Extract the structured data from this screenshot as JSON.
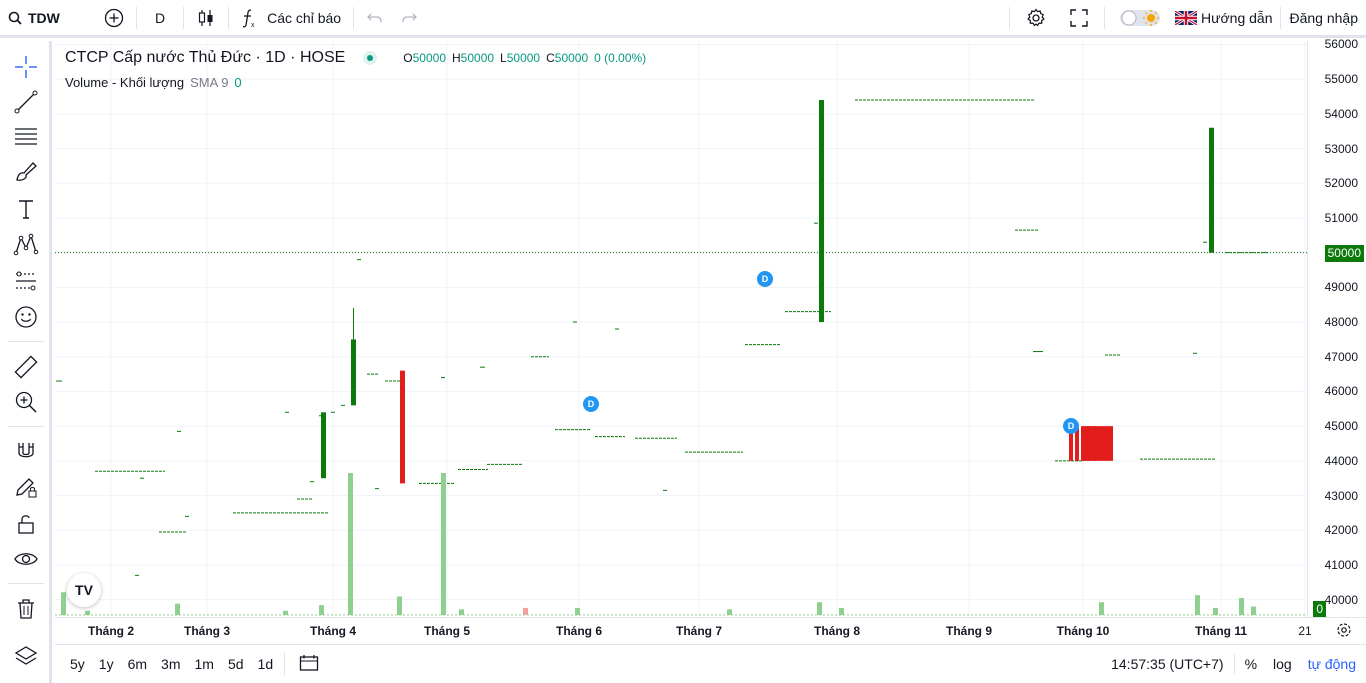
{
  "topbar": {
    "symbol": "TDW",
    "interval": "D",
    "indicators_label": "Các chỉ báo",
    "guide_label": "Hướng dẫn",
    "login_label": "Đăng nhập"
  },
  "legend": {
    "title": "CTCP Cấp nước Thủ Đức · 1D · HOSE",
    "o_key": "O",
    "o_val": "50000",
    "h_key": "H",
    "h_val": "50000",
    "l_key": "L",
    "l_val": "50000",
    "c_key": "C",
    "c_val": "50000",
    "change": "0 (0.00%)",
    "volume_label": "Volume - Khối lượng",
    "sma_label": "SMA 9",
    "sma_val": "0"
  },
  "price_axis": {
    "ticks": [
      "56000",
      "55000",
      "54000",
      "53000",
      "52000",
      "51000",
      "50000",
      "49000",
      "48000",
      "47000",
      "46000",
      "45000",
      "44000",
      "43000",
      "42000",
      "41000",
      "40000"
    ],
    "last_price": "50000",
    "volume_last": "0"
  },
  "time_axis": {
    "ticks": [
      "Tháng 2",
      "Tháng 3",
      "Tháng 4",
      "Tháng 5",
      "Tháng 6",
      "Tháng 7",
      "Tháng 8",
      "Tháng 9",
      "Tháng 10",
      "Tháng 11",
      "21"
    ]
  },
  "bottombar": {
    "ranges": [
      "5y",
      "1y",
      "6m",
      "3m",
      "1m",
      "5d",
      "1d"
    ],
    "clock": "14:57:35 (UTC+7)",
    "percent": "%",
    "log": "log",
    "auto": "tự động"
  },
  "logo_text": "TV",
  "dividend_marker": "D",
  "colors": {
    "up": "#0b7a0b",
    "down": "#e31c1c",
    "accent": "#2962ff",
    "dividend": "#2196f3"
  },
  "chart_data": {
    "type": "bar",
    "ylim": [
      39500,
      56100
    ],
    "y_ticks": [
      40000,
      41000,
      42000,
      43000,
      44000,
      45000,
      46000,
      47000,
      48000,
      49000,
      50000,
      51000,
      52000,
      53000,
      54000,
      55000,
      56000
    ],
    "last_price": 50000,
    "x_tick_labels": [
      "Tháng 2",
      "Tháng 3",
      "Tháng 4",
      "Tháng 5",
      "Tháng 6",
      "Tháng 7",
      "Tháng 8",
      "Tháng 9",
      "Tháng 10",
      "Tháng 11",
      "21"
    ],
    "candles": [
      {
        "o": 46300,
        "h": 46300,
        "l": 46300,
        "c": 46300
      },
      {
        "o": 43700,
        "h": 43700,
        "l": 43700,
        "c": 43700
      },
      {
        "o": 43500,
        "h": 43500,
        "l": 43500,
        "c": 43500
      },
      {
        "o": 40700,
        "h": 40700,
        "l": 40700,
        "c": 40700
      },
      {
        "o": 41950,
        "h": 41950,
        "l": 41950,
        "c": 41950
      },
      {
        "o": 44850,
        "h": 44850,
        "l": 44850,
        "c": 44850
      },
      {
        "o": 42400,
        "h": 42400,
        "l": 42400,
        "c": 42400
      },
      {
        "o": 42500,
        "h": 42500,
        "l": 42500,
        "c": 42500
      },
      {
        "o": 45400,
        "h": 45400,
        "l": 45400,
        "c": 45400
      },
      {
        "o": 42900,
        "h": 42900,
        "l": 42900,
        "c": 42900
      },
      {
        "o": 43400,
        "h": 43400,
        "l": 43400,
        "c": 43400
      },
      {
        "o": 45300,
        "h": 45300,
        "l": 45300,
        "c": 45300
      },
      {
        "o": 43500,
        "h": 45400,
        "l": 43500,
        "c": 45400
      },
      {
        "o": 45400,
        "h": 45400,
        "l": 45400,
        "c": 45400
      },
      {
        "o": 45600,
        "h": 45600,
        "l": 45600,
        "c": 45600
      },
      {
        "o": 45600,
        "h": 48400,
        "l": 45600,
        "c": 47500
      },
      {
        "o": 49800,
        "h": 49800,
        "l": 49800,
        "c": 49800
      },
      {
        "o": 46500,
        "h": 46500,
        "l": 46500,
        "c": 46500
      },
      {
        "o": 43200,
        "h": 43200,
        "l": 43200,
        "c": 43200
      },
      {
        "o": 46300,
        "h": 46300,
        "l": 46300,
        "c": 46300
      },
      {
        "o": 46600,
        "h": 46600,
        "l": 43350,
        "c": 43350
      },
      {
        "o": 43350,
        "h": 43350,
        "l": 43350,
        "c": 43350
      },
      {
        "o": 46400,
        "h": 46400,
        "l": 46400,
        "c": 46400
      },
      {
        "o": 43750,
        "h": 43750,
        "l": 43750,
        "c": 43750
      },
      {
        "o": 46700,
        "h": 46700,
        "l": 46700,
        "c": 46700
      },
      {
        "o": 43900,
        "h": 43900,
        "l": 43900,
        "c": 43900
      },
      {
        "o": 47000,
        "h": 47000,
        "l": 47000,
        "c": 47000
      },
      {
        "o": 44900,
        "h": 44900,
        "l": 44900,
        "c": 44900
      },
      {
        "o": 48000,
        "h": 48000,
        "l": 48000,
        "c": 48000
      },
      {
        "o": 44700,
        "h": 44700,
        "l": 44700,
        "c": 44700
      },
      {
        "o": 47800,
        "h": 47800,
        "l": 47800,
        "c": 47800
      },
      {
        "o": 44650,
        "h": 44650,
        "l": 44650,
        "c": 44650
      },
      {
        "o": 43150,
        "h": 43150,
        "l": 43150,
        "c": 43150
      },
      {
        "o": 44250,
        "h": 44250,
        "l": 44250,
        "c": 44250
      },
      {
        "o": 47350,
        "h": 47350,
        "l": 47350,
        "c": 47350
      },
      {
        "o": 48300,
        "h": 48300,
        "l": 48300,
        "c": 48300
      },
      {
        "o": 48000,
        "h": 54400,
        "l": 48000,
        "c": 54400
      },
      {
        "o": 50850,
        "h": 50850,
        "l": 50850,
        "c": 50850
      },
      {
        "o": 54400,
        "h": 54400,
        "l": 54400,
        "c": 54400
      },
      {
        "o": 50650,
        "h": 50650,
        "l": 50650,
        "c": 50650
      },
      {
        "o": 47150,
        "h": 47150,
        "l": 47150,
        "c": 47150
      },
      {
        "o": 44000,
        "h": 44000,
        "l": 44000,
        "c": 44000
      },
      {
        "o": 45000,
        "h": 45000,
        "l": 44000,
        "c": 44000
      },
      {
        "o": 47050,
        "h": 47050,
        "l": 47050,
        "c": 47050
      },
      {
        "o": 44050,
        "h": 44050,
        "l": 44050,
        "c": 44050
      },
      {
        "o": 47100,
        "h": 47100,
        "l": 47100,
        "c": 47100
      },
      {
        "o": 50300,
        "h": 50300,
        "l": 50300,
        "c": 50300
      },
      {
        "o": 50000,
        "h": 53600,
        "l": 50000,
        "c": 53600
      },
      {
        "o": 50000,
        "h": 50000,
        "l": 50000,
        "c": 50000
      }
    ],
    "volume": [
      {
        "v": 0.16,
        "up": true
      },
      {
        "v": 0.03,
        "up": true
      },
      {
        "v": 0.08,
        "up": true
      },
      {
        "v": 0.03,
        "up": true
      },
      {
        "v": 0.07,
        "up": true
      },
      {
        "v": 0.13,
        "up": true
      },
      {
        "v": 1.0,
        "up": true
      },
      {
        "v": 0.04,
        "up": true
      },
      {
        "v": 0.05,
        "up": false
      },
      {
        "v": 0.05,
        "up": true
      },
      {
        "v": 0.04,
        "up": true
      },
      {
        "v": 0.09,
        "up": true
      },
      {
        "v": 0.05,
        "up": true
      },
      {
        "v": 0.09,
        "up": true
      },
      {
        "v": 0.14,
        "up": true
      },
      {
        "v": 0.05,
        "up": true
      },
      {
        "v": 0.12,
        "up": true
      },
      {
        "v": 0.06,
        "up": true
      },
      {
        "v": 0.11,
        "up": true
      },
      {
        "v": 0.05,
        "up": true
      }
    ],
    "dividends": [
      {
        "label": "D"
      },
      {
        "label": "D"
      },
      {
        "label": "D"
      }
    ]
  }
}
